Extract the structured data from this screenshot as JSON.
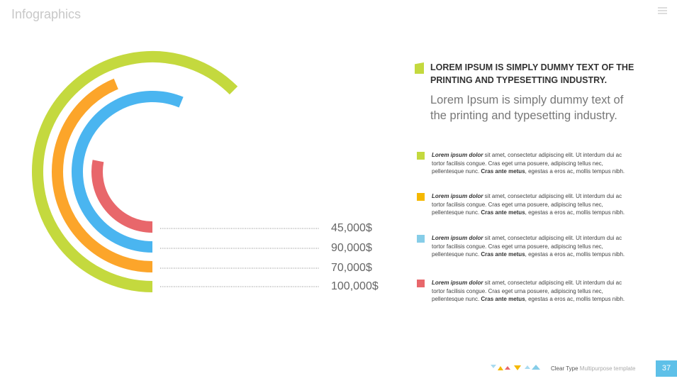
{
  "header": {
    "title": "Infographics"
  },
  "chart_data": {
    "type": "radial_bar",
    "values": [
      45000,
      90000,
      70000,
      100000
    ],
    "value_labels": [
      "45,000$",
      "90,000$",
      "70,000$",
      "100,000$"
    ],
    "colors": [
      "#e8676b",
      "#4ab5f0",
      "#fca52a",
      "#c4d93e"
    ]
  },
  "text": {
    "heading": "LOREM IPSUM IS SIMPLY DUMMY TEXT OF THE PRINTING AND TYPESETTING INDUSTRY.",
    "subheading": "Lorem Ipsum is simply dummy text of the printing and typesetting industry.",
    "items": [
      {
        "color": "#c4d93e",
        "lead": "Lorem ipsum dolor",
        "text": " sit amet, consectetur adipiscing elit. Ut interdum dui ac tortor facilisis congue. Cras eget urna posuere, adipiscing tellus nec, pellentesque nunc. ",
        "bold": "Cras ante metus",
        "tail": ", egestas a eros ac, mollis tempus nibh."
      },
      {
        "color": "#f5b800",
        "lead": "Lorem ipsum dolor",
        "text": " sit amet, consectetur adipiscing elit. Ut interdum dui ac tortor facilisis congue. Cras eget urna posuere, adipiscing tellus nec, pellentesque nunc. ",
        "bold": "Cras ante metus",
        "tail": ", egestas a eros ac, mollis tempus nibh."
      },
      {
        "color": "#86cde8",
        "lead": "Lorem ipsum dolor",
        "text": " sit amet, consectetur adipiscing elit. Ut interdum dui ac tortor facilisis congue. Cras eget urna posuere, adipiscing tellus nec, pellentesque nunc. ",
        "bold": "Cras ante metus",
        "tail": ", egestas a eros ac, mollis tempus nibh."
      },
      {
        "color": "#e8676b",
        "lead": "Lorem ipsum dolor",
        "text": " sit amet, consectetur adipiscing elit. Ut interdum dui ac tortor facilisis congue. Cras eget urna posuere, adipiscing tellus nec, pellentesque nunc. ",
        "bold": "Cras ante metus",
        "tail": ", egestas a eros ac, mollis tempus nibh."
      }
    ]
  },
  "footer": {
    "brand": "Clear Type",
    "tagline": "Multipurpose template",
    "page": "37"
  }
}
